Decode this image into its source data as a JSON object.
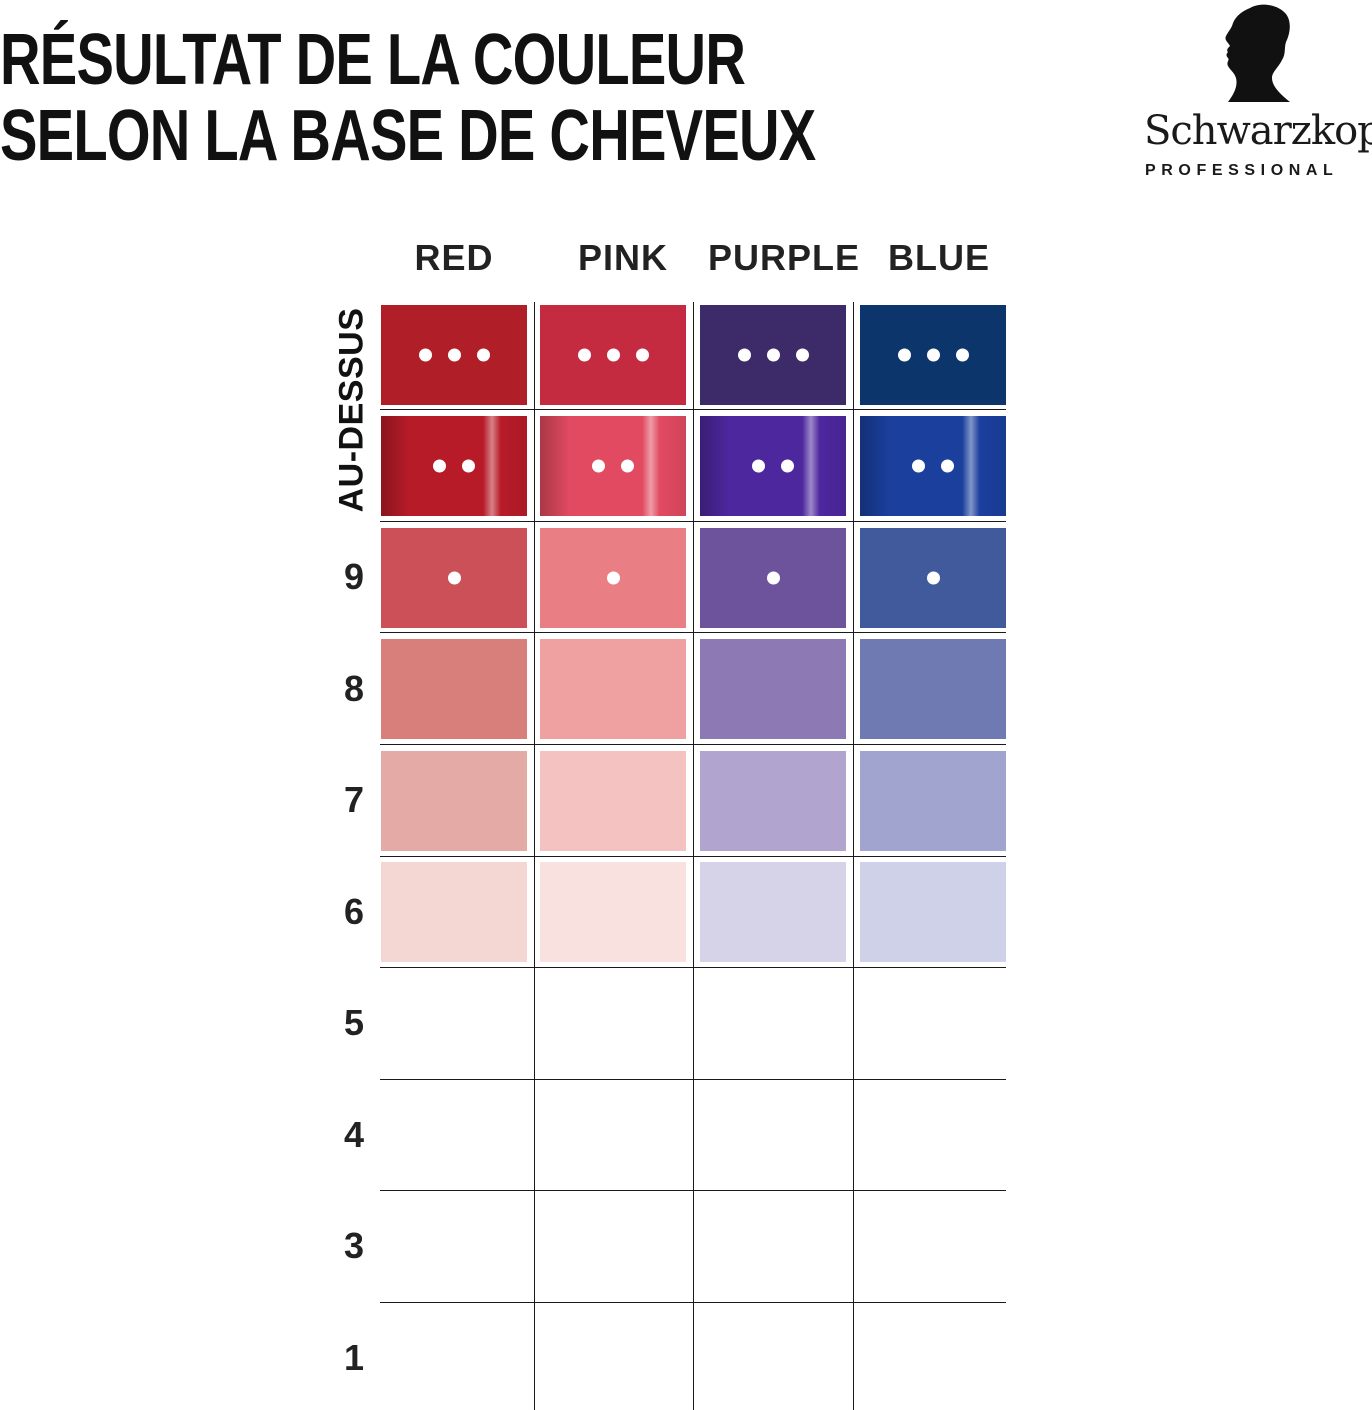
{
  "title": {
    "line1": "RÉSULTAT DE LA COULEUR",
    "line2": "SELON LA BASE DE CHEVEUX"
  },
  "logo": {
    "brand": "Schwarzkopf",
    "sub": "PROFESSIONAL",
    "icon": "silhouette-head-icon"
  },
  "columns": [
    "RED",
    "PINK",
    "PURPLE",
    "BLUE"
  ],
  "rows": [
    "AU-DESSUS",
    "9",
    "8",
    "7",
    "6",
    "5",
    "4",
    "3",
    "1"
  ],
  "swatches": [
    {
      "row": "au-dessus-1",
      "dots": 3,
      "shine": false,
      "colors": [
        "#b01f27",
        "#c52b40",
        "#3d2a68",
        "#0c366b"
      ]
    },
    {
      "row": "au-dessus-2",
      "dots": 2,
      "shine": true,
      "colors": [
        "#b81b28",
        "#e14a60",
        "#4d279e",
        "#1a3f9d"
      ]
    },
    {
      "row": "9",
      "dots": 1,
      "shine": false,
      "colors": [
        "#cb5057",
        "#e97f84",
        "#6d539b",
        "#405a9b"
      ]
    },
    {
      "row": "8",
      "dots": 0,
      "shine": false,
      "colors": [
        "#d87e7b",
        "#efa1a2",
        "#8d79b4",
        "#6f7ab3"
      ]
    },
    {
      "row": "7",
      "dots": 0,
      "shine": false,
      "colors": [
        "#e4aaa5",
        "#f5c2c2",
        "#b1a4ce",
        "#a1a4cf"
      ]
    },
    {
      "row": "6",
      "dots": 0,
      "shine": false,
      "colors": [
        "#f4d6d2",
        "#f9e1e0",
        "#d6d2e7",
        "#cfd1e8"
      ]
    }
  ]
}
